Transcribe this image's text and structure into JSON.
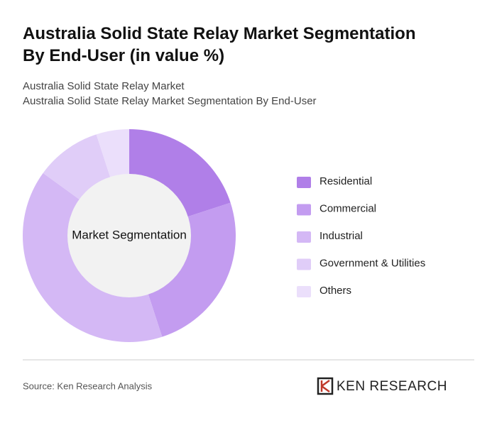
{
  "chart_data": {
    "type": "donut",
    "title": "Australia Solid State Relay Market Segmentation By End-User (in value %)",
    "subtitle": [
      "Australia Solid State Relay Market",
      "Australia Solid State Relay Market Segmentation By End-User"
    ],
    "center_label": "Market Segmentation",
    "categories": [
      "Residential",
      "Commercial",
      "Industrial",
      "Government & Utilities",
      "Others"
    ],
    "values": [
      20,
      25,
      40,
      10,
      5
    ],
    "colors": [
      "#b07fe8",
      "#c39cf0",
      "#d4b8f5",
      "#e0cdf8",
      "#ebdffb"
    ],
    "legend": "right"
  },
  "footer": {
    "source": "Source: Ken Research Analysis",
    "logo": "KEN RESEARCH"
  }
}
